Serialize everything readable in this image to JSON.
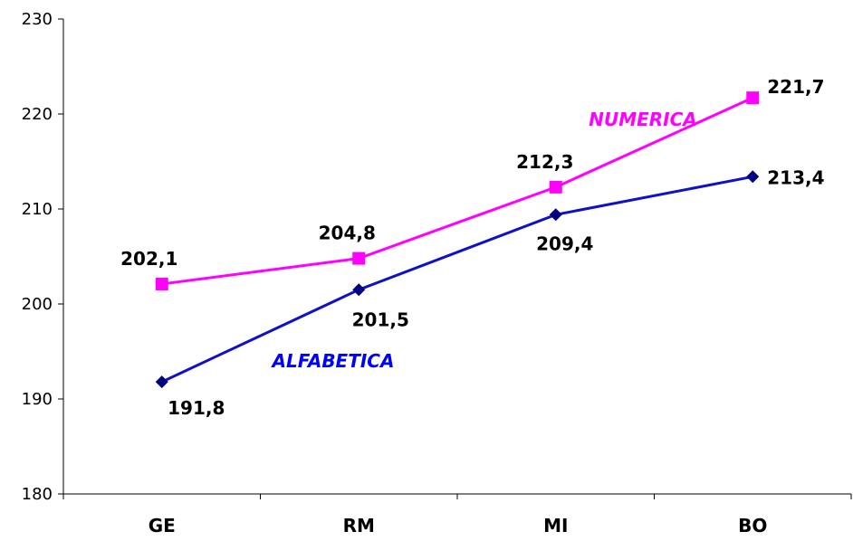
{
  "chart_data": {
    "type": "line",
    "categories": [
      "GE",
      "RM",
      "MI",
      "BO"
    ],
    "ylim": [
      180,
      230
    ],
    "yticks": [
      "180",
      "190",
      "200",
      "210",
      "220",
      "230"
    ],
    "ytick_values": [
      180,
      190,
      200,
      210,
      220,
      230
    ],
    "grid": false,
    "legend": "none",
    "series": [
      {
        "name": "NUMERICA",
        "values": [
          202.1,
          204.8,
          212.3,
          221.7
        ],
        "labels": [
          "202,1",
          "204,8",
          "212,3",
          "221,7"
        ],
        "color": "#ff00ff",
        "marker": "square"
      },
      {
        "name": "ALFABETICA",
        "values": [
          191.8,
          201.5,
          209.4,
          213.4
        ],
        "labels": [
          "191,8",
          "201,5",
          "209,4",
          "213,4"
        ],
        "color": "#000080",
        "label_color": "#0000ff",
        "marker": "diamond"
      }
    ]
  }
}
